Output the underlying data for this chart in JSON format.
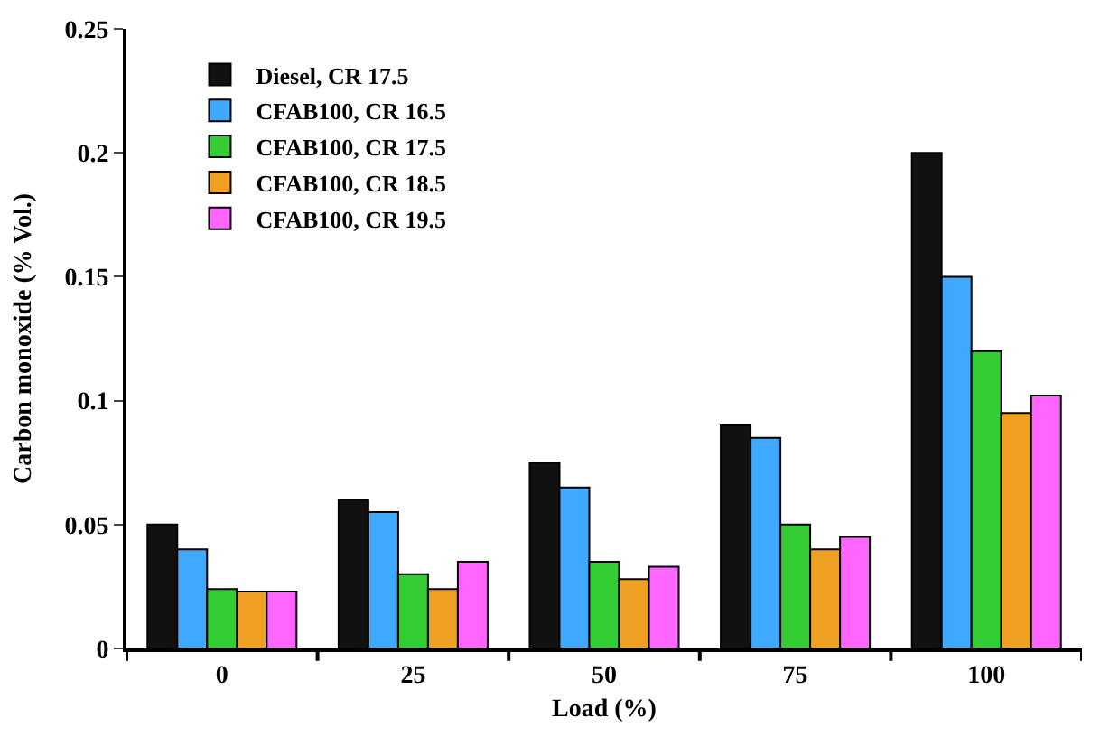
{
  "chart_data": {
    "type": "bar",
    "xlabel": "Load (%)",
    "ylabel": "Carbon monoxide (% Vol.)",
    "categories": [
      "0",
      "25",
      "50",
      "75",
      "100"
    ],
    "series": [
      {
        "name": "Diesel, CR 17.5",
        "color": "#111111",
        "values": [
          0.05,
          0.06,
          0.075,
          0.09,
          0.2
        ]
      },
      {
        "name": "CFAB100, CR 16.5",
        "color": "#3fa9ff",
        "values": [
          0.04,
          0.055,
          0.065,
          0.085,
          0.15
        ]
      },
      {
        "name": "CFAB100, CR 17.5",
        "color": "#33cc33",
        "values": [
          0.024,
          0.03,
          0.035,
          0.05,
          0.12
        ]
      },
      {
        "name": "CFAB100, CR 18.5",
        "color": "#f0a020",
        "values": [
          0.023,
          0.024,
          0.028,
          0.04,
          0.095
        ]
      },
      {
        "name": "CFAB100, CR 19.5",
        "color": "#ff66ff",
        "values": [
          0.023,
          0.035,
          0.033,
          0.045,
          0.102
        ]
      }
    ],
    "ylim": [
      0,
      0.25
    ],
    "yticks": [
      0,
      0.05,
      0.1,
      0.15,
      0.2,
      0.25
    ],
    "legend": "top left"
  }
}
